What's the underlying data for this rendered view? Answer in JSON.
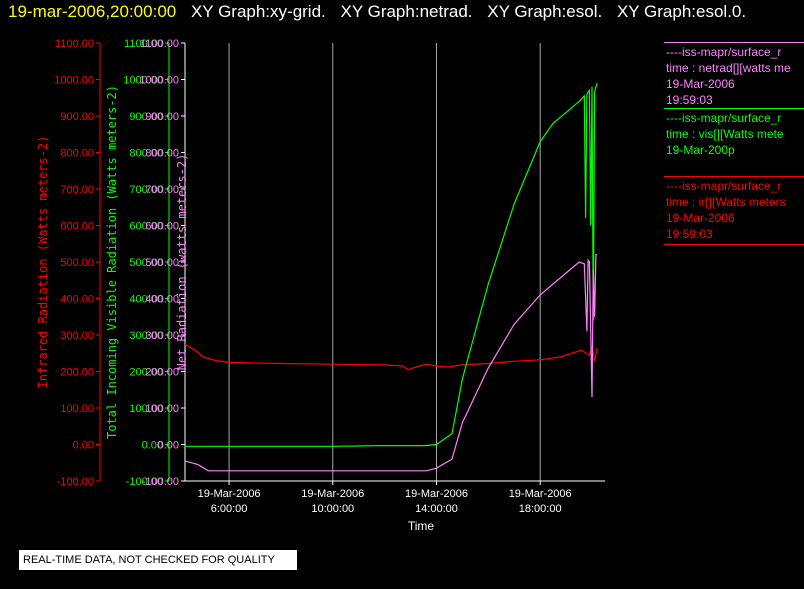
{
  "header": {
    "timestamp": "19-mar-2006,20:00:00",
    "graphs": [
      "XY Graph:xy-grid.",
      "XY Graph:netrad.",
      "XY Graph:esol.",
      "XY Graph:esol.0."
    ]
  },
  "legend": [
    {
      "color": "#ff80ff",
      "lines": [
        "----iss-mapr/surface_r",
        "time : netrad[][watts me",
        "19-Mar-2006",
        "19:59:03"
      ]
    },
    {
      "color": "#00ff00",
      "lines": [
        "----iss-mapr/surface_r",
        "time : vis[][Watts mete",
        "19-Mar-200p"
      ]
    },
    {
      "color": "#ff0000",
      "lines": [
        "----iss-mapr/surface_r",
        "time : ir[][Watts meters",
        "19-Mar-2006",
        "19:59:03"
      ]
    }
  ],
  "footer": {
    "note": "REAL-TIME DATA, NOT CHECKED FOR QUALITY"
  },
  "chart_data": {
    "type": "line",
    "xlabel": "Time",
    "x_unit": "hours since 00:00 on 19-Mar-2006",
    "xlim": [
      4.3,
      20.5
    ],
    "x_ticks": [
      {
        "x": 6,
        "date": "19-Mar-2006",
        "time": "6:00:00"
      },
      {
        "x": 10,
        "date": "19-Mar-2006",
        "time": "10:00:00"
      },
      {
        "x": 14,
        "date": "19-Mar-2006",
        "time": "14:00:00"
      },
      {
        "x": 18,
        "date": "19-Mar-2006",
        "time": "18:00:00"
      }
    ],
    "grid": true,
    "axes": [
      {
        "id": "ir",
        "label": "Infrared Radiation (Watts meters-2)",
        "color": "#ff0000",
        "ylim": [
          -100,
          1100
        ],
        "ticks": [
          "-100.00",
          "0.00",
          "100.00",
          "200.00",
          "300.00",
          "400.00",
          "500.00",
          "600.00",
          "700.00",
          "800.00",
          "900.00",
          "1000.00",
          "1100.00"
        ]
      },
      {
        "id": "vis",
        "label": "Total Incoming Visible Radiation (Watts meters-2)",
        "color": "#00ff00",
        "ylim": [
          -100,
          1100
        ],
        "ticks": [
          "-100.00",
          "0.00",
          "100.00",
          "200.00",
          "300.00",
          "400.00",
          "500.00",
          "600.00",
          "700.00",
          "800.00",
          "900.00",
          "1000.00",
          "1100.00"
        ]
      },
      {
        "id": "net",
        "label": "Net Radiation (watts meters-2)",
        "color": "#ff80ff",
        "ylim": [
          -100,
          1100
        ],
        "ticks": [
          "-100.00",
          "0.00",
          "100.00",
          "200.00",
          "300.00",
          "400.00",
          "500.00",
          "600.00",
          "700.00",
          "800.00",
          "900.00",
          "1000.00",
          "1100.00"
        ]
      }
    ],
    "series": [
      {
        "axis": "ir",
        "color": "#ff0000",
        "x": [
          4.3,
          4.7,
          5.0,
          5.5,
          6,
          8,
          10,
          12,
          12.7,
          12.9,
          13.2,
          13.6,
          14,
          14.4,
          15,
          16,
          17,
          18,
          18.8,
          19.2,
          19.6,
          19.9,
          20.0,
          20.1,
          20.2
        ],
        "y": [
          275,
          258,
          240,
          230,
          225,
          222,
          220,
          218,
          215,
          205,
          212,
          220,
          215,
          212,
          218,
          222,
          228,
          232,
          240,
          250,
          258,
          245,
          270,
          230,
          265
        ]
      },
      {
        "axis": "vis",
        "color": "#00ff00",
        "x": [
          4.3,
          6,
          8,
          10,
          12,
          13.6,
          14,
          14.6,
          15,
          16,
          17,
          18,
          18.5,
          19,
          19.5,
          19.7,
          19.75,
          19.8,
          19.9,
          19.95,
          20.0,
          20.05,
          20.1,
          20.15,
          20.2
        ],
        "y": [
          -5,
          -5,
          -5,
          -5,
          -3,
          -3,
          0,
          30,
          180,
          440,
          660,
          830,
          880,
          910,
          940,
          955,
          620,
          960,
          970,
          600,
          980,
          340,
          965,
          980,
          990
        ]
      },
      {
        "axis": "net",
        "color": "#ff80ff",
        "x": [
          4.3,
          4.8,
          5.2,
          6,
          8,
          10,
          12,
          13.6,
          14,
          14.6,
          15,
          16,
          17,
          18,
          19,
          19.5,
          19.7,
          19.8,
          19.85,
          19.9,
          20.0,
          20.05,
          20.1,
          20.15,
          20.2
        ],
        "y": [
          -45,
          -55,
          -72,
          -72,
          -72,
          -72,
          -72,
          -72,
          -65,
          -40,
          60,
          210,
          330,
          410,
          470,
          500,
          495,
          310,
          505,
          500,
          130,
          480,
          350,
          520,
          520
        ]
      }
    ]
  }
}
